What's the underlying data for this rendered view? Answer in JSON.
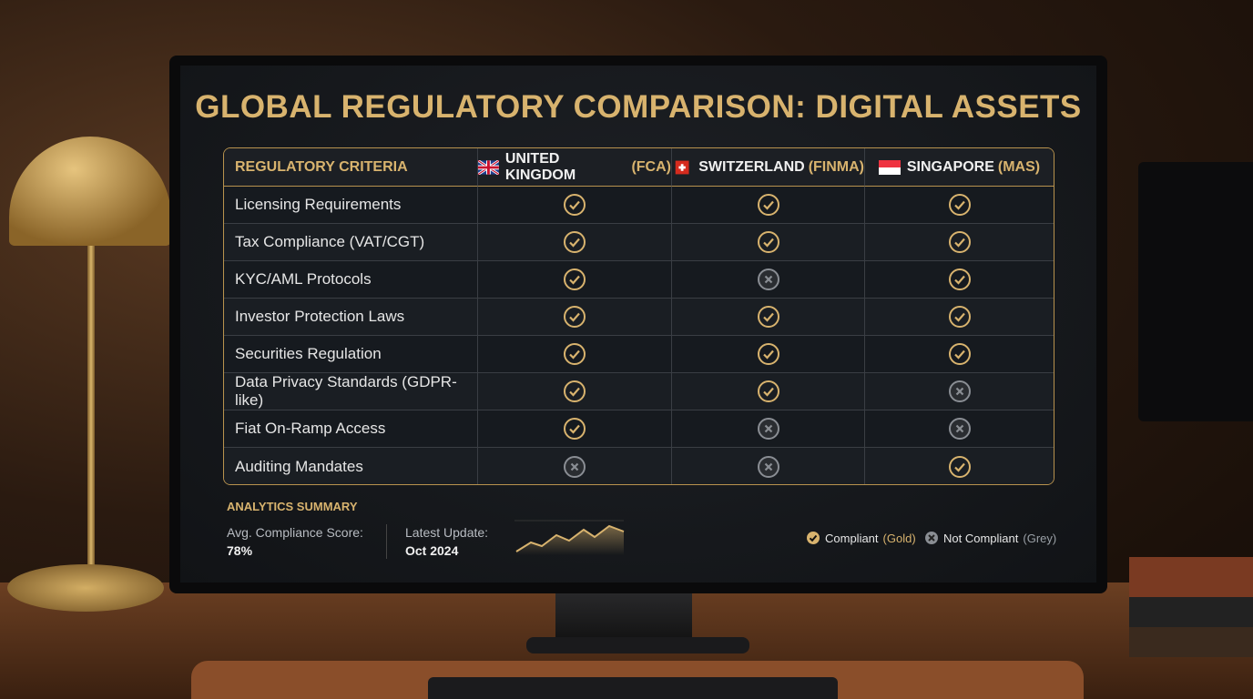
{
  "title": "GLOBAL REGULATORY COMPARISON: DIGITAL ASSETS",
  "table": {
    "header": [
      "REGULATORY CRITERIA",
      {
        "name": "UNITED KINGDOM",
        "regulator": "(FCA)"
      },
      {
        "name": "SWITZERLAND",
        "regulator": "(FINMA)"
      },
      {
        "name": "SINGAPORE",
        "regulator": "(MAS)"
      }
    ],
    "rows": [
      {
        "criteria": "Licensing Requirements",
        "compliant": [
          true,
          true,
          true
        ]
      },
      {
        "criteria": "Tax Compliance (VAT/CGT)",
        "compliant": [
          true,
          true,
          true
        ]
      },
      {
        "criteria": "KYC/AML Protocols",
        "compliant": [
          true,
          false,
          true
        ]
      },
      {
        "criteria": "Investor Protection Laws",
        "compliant": [
          true,
          true,
          true
        ]
      },
      {
        "criteria": "Securities Regulation",
        "compliant": [
          true,
          true,
          true
        ]
      },
      {
        "criteria": "Data Privacy Standards (GDPR-like)",
        "compliant": [
          true,
          true,
          false
        ]
      },
      {
        "criteria": "Fiat On-Ramp Access",
        "compliant": [
          true,
          false,
          false
        ]
      },
      {
        "criteria": "Auditing Mandates",
        "compliant": [
          false,
          false,
          true
        ]
      }
    ]
  },
  "summary": {
    "heading": "ANALYTICS SUMMARY",
    "score_label": "Avg. Compliance Score:",
    "score": "78%",
    "update_label": "Latest Update:",
    "update": "Oct 2024"
  },
  "legend": {
    "compliant": "Compliant",
    "compliant_color": "(Gold)",
    "not_compliant": "Not Compliant",
    "not_compliant_color": "(Grey)"
  }
}
